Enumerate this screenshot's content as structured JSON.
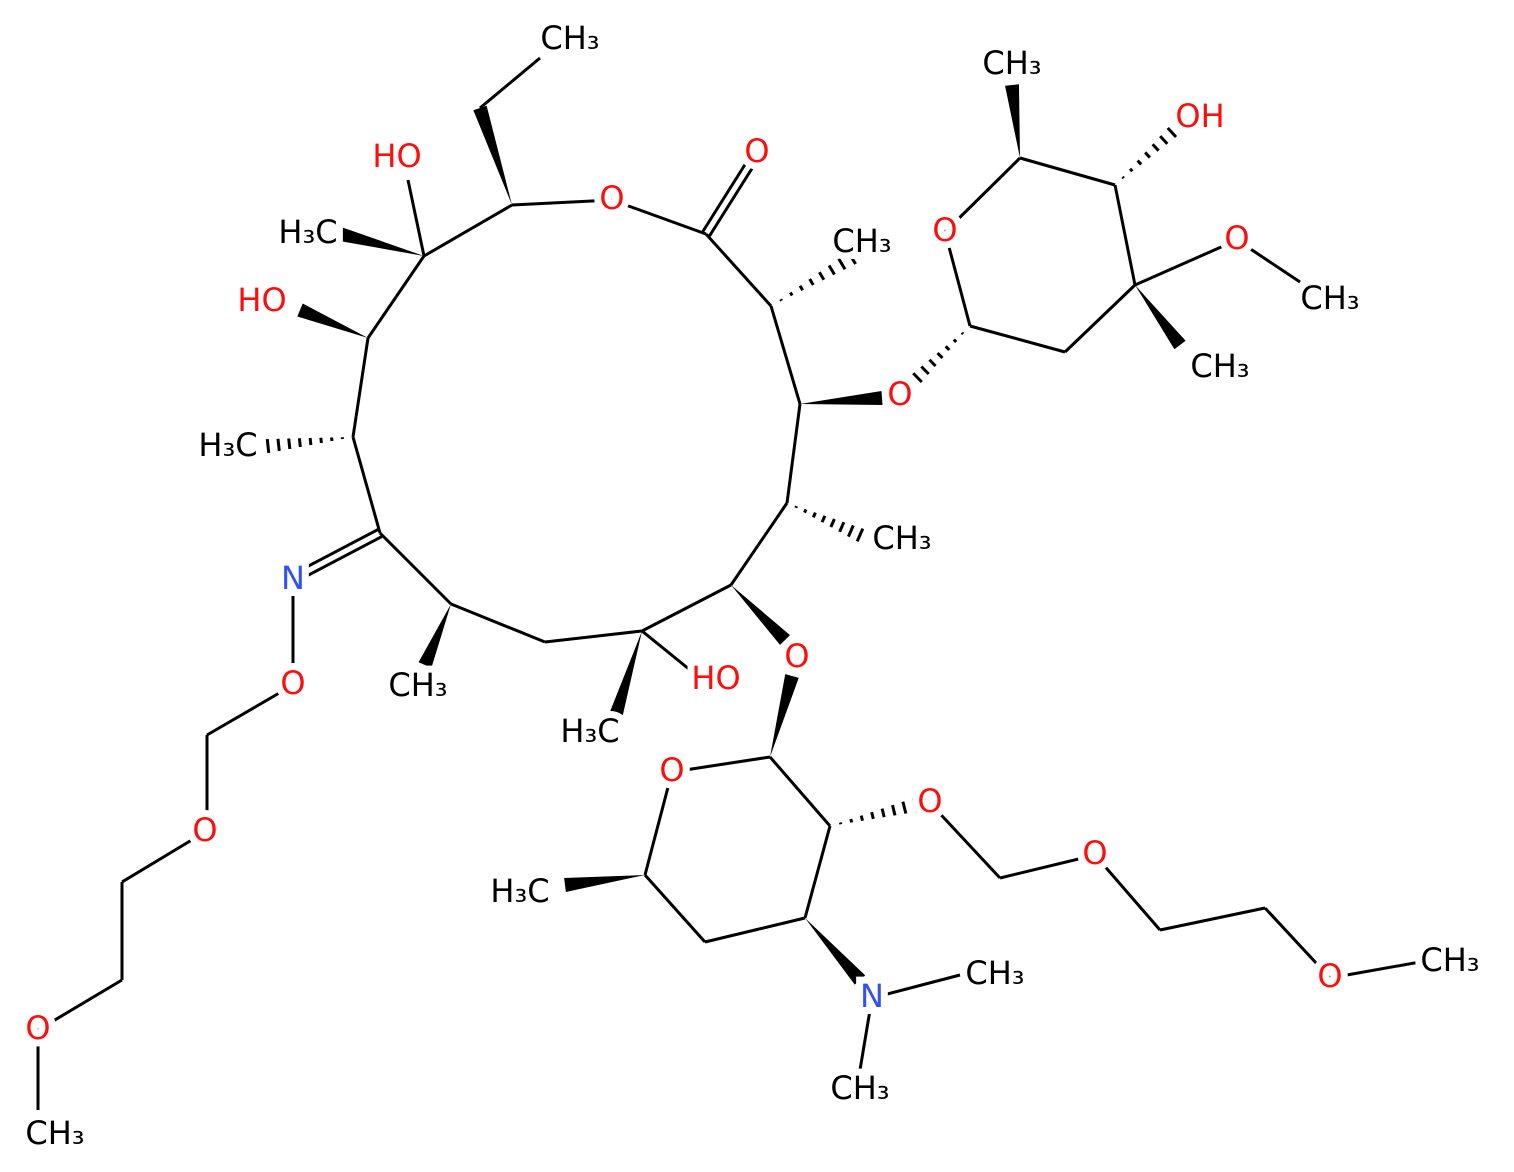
{
  "atoms": [
    "CH₃",
    "O",
    "O",
    "HO",
    "H₃C",
    "CH₃",
    "HO",
    "O",
    "H₃C",
    "CH₃",
    "N",
    "O",
    "O",
    "CH₃",
    "HO",
    "H₃C",
    "O",
    "O",
    "CH₃",
    "CH₃",
    "OH",
    "O",
    "O",
    "CH₃",
    "CH₃",
    "O",
    "O",
    "O",
    "H₃C",
    "N",
    "CH₃",
    "CH₃",
    "O",
    "CH₃"
  ]
}
